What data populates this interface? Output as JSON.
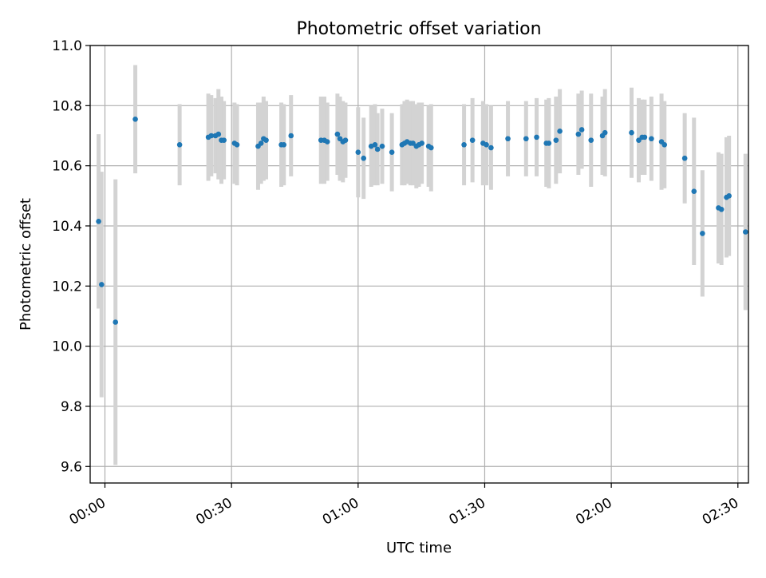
{
  "chart_data": {
    "type": "scatter",
    "title": "Photometric offset variation",
    "xlabel": "UTC time",
    "ylabel": "Photometric offset",
    "x_axis_kind": "time",
    "x_range_min": [
      -3.5,
      152.5
    ],
    "ylim": [
      9.545,
      11.0
    ],
    "x_ticks": [
      {
        "min": 0,
        "label": "00:00"
      },
      {
        "min": 30,
        "label": "00:30"
      },
      {
        "min": 60,
        "label": "01:00"
      },
      {
        "min": 90,
        "label": "01:30"
      },
      {
        "min": 120,
        "label": "02:00"
      },
      {
        "min": 150,
        "label": "02:30"
      }
    ],
    "y_ticks": [
      {
        "value": 9.6,
        "label": "9.6"
      },
      {
        "value": 9.8,
        "label": "9.8"
      },
      {
        "value": 10.0,
        "label": "10.0"
      },
      {
        "value": 10.2,
        "label": "10.2"
      },
      {
        "value": 10.4,
        "label": "10.4"
      },
      {
        "value": 10.6,
        "label": "10.6"
      },
      {
        "value": 10.8,
        "label": "10.8"
      },
      {
        "value": 11.0,
        "label": "11.0"
      }
    ],
    "grid": true,
    "colors": {
      "point": "#1f77b4",
      "errorbar": "#d3d3d3",
      "grid": "#b0b0b0"
    },
    "series": [
      {
        "x_min": [
          -1.5,
          -0.8,
          2.5,
          7.2,
          17.7,
          24.5,
          25.2,
          26.2,
          26.9,
          27.6,
          28.2,
          30.7,
          31.3,
          36.3,
          37.0,
          37.6,
          38.2,
          41.8,
          42.4,
          44.1,
          51.2,
          52.0,
          52.7,
          55.1,
          55.7,
          56.4,
          57.0,
          60.0,
          61.3,
          63.1,
          64.0,
          64.6,
          65.7,
          68.0,
          70.4,
          71.0,
          71.6,
          72.4,
          73.0,
          73.8,
          74.4,
          75.1,
          76.7,
          77.3,
          85.1,
          87.1,
          89.6,
          90.4,
          91.5,
          95.5,
          99.8,
          102.3,
          104.6,
          105.2,
          106.9,
          107.8,
          112.2,
          113.0,
          115.2,
          117.9,
          118.5,
          124.8,
          126.5,
          127.3,
          127.9,
          129.5,
          131.9,
          132.6,
          137.4,
          139.6,
          141.6,
          145.4,
          146.1,
          147.3,
          147.9,
          151.8
        ],
        "y": [
          10.415,
          10.205,
          10.08,
          10.755,
          10.67,
          10.695,
          10.7,
          10.7,
          10.705,
          10.685,
          10.685,
          10.675,
          10.67,
          10.665,
          10.675,
          10.69,
          10.685,
          10.67,
          10.67,
          10.7,
          10.685,
          10.685,
          10.68,
          10.705,
          10.69,
          10.68,
          10.685,
          10.645,
          10.625,
          10.665,
          10.67,
          10.655,
          10.665,
          10.645,
          10.67,
          10.675,
          10.68,
          10.675,
          10.675,
          10.665,
          10.67,
          10.675,
          10.665,
          10.66,
          10.67,
          10.685,
          10.675,
          10.67,
          10.66,
          10.69,
          10.69,
          10.695,
          10.675,
          10.675,
          10.685,
          10.715,
          10.705,
          10.72,
          10.685,
          10.7,
          10.71,
          10.71,
          10.685,
          10.695,
          10.695,
          10.69,
          10.68,
          10.67,
          10.625,
          10.515,
          10.375,
          10.46,
          10.455,
          10.495,
          10.5,
          10.38
        ],
        "yerr": [
          0.29,
          0.375,
          0.475,
          0.18,
          0.135,
          0.145,
          0.135,
          0.125,
          0.15,
          0.145,
          0.13,
          0.135,
          0.135,
          0.145,
          0.135,
          0.14,
          0.13,
          0.14,
          0.135,
          0.135,
          0.145,
          0.145,
          0.13,
          0.135,
          0.14,
          0.135,
          0.125,
          0.15,
          0.135,
          0.135,
          0.135,
          0.12,
          0.125,
          0.13,
          0.135,
          0.14,
          0.14,
          0.14,
          0.14,
          0.14,
          0.14,
          0.135,
          0.135,
          0.145,
          0.135,
          0.14,
          0.14,
          0.135,
          0.14,
          0.125,
          0.125,
          0.13,
          0.145,
          0.15,
          0.145,
          0.14,
          0.135,
          0.13,
          0.155,
          0.13,
          0.145,
          0.15,
          0.14,
          0.125,
          0.125,
          0.14,
          0.16,
          0.145,
          0.15,
          0.245,
          0.21,
          0.185,
          0.185,
          0.2,
          0.2,
          0.26
        ]
      }
    ]
  }
}
